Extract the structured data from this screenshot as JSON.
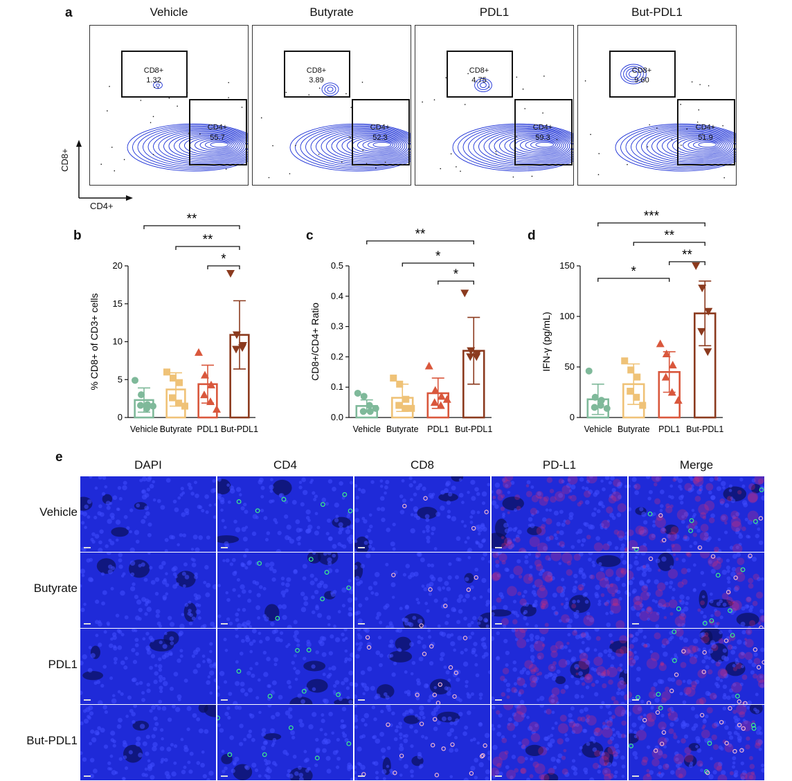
{
  "panel_labels": {
    "a": "a",
    "b": "b",
    "c": "c",
    "d": "d",
    "e": "e"
  },
  "flow": {
    "groups": [
      "Vehicle",
      "Butyrate",
      "PDL1",
      "But-PDL1"
    ],
    "cd8_gate_label": "CD8+",
    "cd4_gate_label": "CD4+",
    "cd8_values": [
      "1.32",
      "3.89",
      "4.75",
      "9.60"
    ],
    "cd4_values": [
      "55.7",
      "52.3",
      "59.3",
      "51.9"
    ],
    "x_axis_label": "CD4+",
    "y_axis_label": "CD8+",
    "contour_color": "#1a2fd6"
  },
  "chart_data": [
    {
      "type": "bar",
      "panel": "b",
      "categories": [
        "Vehicle",
        "Butyrate",
        "PDL1",
        "But-PDL1"
      ],
      "values": [
        2.3,
        3.7,
        4.4,
        10.9
      ],
      "errors": [
        1.6,
        2.2,
        2.5,
        4.5
      ],
      "points": [
        [
          4.9,
          3.0,
          1.7,
          1.6,
          1.2,
          1.5
        ],
        [
          6.0,
          5.2,
          4.6,
          2.6,
          1.9,
          1.5
        ],
        [
          8.6,
          5.6,
          4.3,
          3.0,
          2.1,
          1.1
        ],
        [
          19.0,
          10.9,
          9.5,
          9.0,
          9.2
        ]
      ],
      "colors": [
        "#7fb99a",
        "#efc277",
        "#d9573c",
        "#8b3a1e"
      ],
      "ylabel": "% CD8+ of CD3+ cells",
      "ylim": [
        0,
        20
      ],
      "yticks": [
        "0",
        "5",
        "10",
        "15",
        "20"
      ],
      "significance": [
        {
          "from": 0,
          "to": 3,
          "label": "**"
        },
        {
          "from": 1,
          "to": 3,
          "label": "**"
        },
        {
          "from": 2,
          "to": 3,
          "label": "*"
        }
      ]
    },
    {
      "type": "bar",
      "panel": "c",
      "categories": [
        "Vehicle",
        "Butyrate",
        "PDL1",
        "But-PDL1"
      ],
      "values": [
        0.038,
        0.065,
        0.08,
        0.22
      ],
      "errors": [
        0.02,
        0.045,
        0.05,
        0.11
      ],
      "points": [
        [
          0.08,
          0.07,
          0.02,
          0.02,
          0.04,
          0.03
        ],
        [
          0.13,
          0.11,
          0.06,
          0.04,
          0.03,
          0.03
        ],
        [
          0.17,
          0.09,
          0.07,
          0.05,
          0.04,
          0.06
        ],
        [
          0.41,
          0.22,
          0.21,
          0.2,
          0.2
        ]
      ],
      "colors": [
        "#7fb99a",
        "#efc277",
        "#d9573c",
        "#8b3a1e"
      ],
      "ylabel": "CD8+/CD4+ Ratio",
      "ylim": [
        0,
        0.5
      ],
      "yticks": [
        "0.0",
        "0.1",
        "0.2",
        "0.3",
        "0.4",
        "0.5"
      ],
      "significance": [
        {
          "from": 0,
          "to": 3,
          "label": "**"
        },
        {
          "from": 1,
          "to": 3,
          "label": "*"
        },
        {
          "from": 2,
          "to": 3,
          "label": "*"
        }
      ]
    },
    {
      "type": "bar",
      "panel": "d",
      "categories": [
        "Vehicle",
        "Butyrate",
        "PDL1",
        "But-PDL1"
      ],
      "values": [
        18,
        33,
        45,
        103
      ],
      "errors": [
        15,
        20,
        20,
        32
      ],
      "points": [
        [
          46,
          20,
          17,
          10,
          12,
          9
        ],
        [
          56,
          47,
          40,
          26,
          20,
          12
        ],
        [
          73,
          63,
          52,
          40,
          25,
          17
        ],
        [
          150,
          128,
          105,
          85,
          65
        ]
      ],
      "colors": [
        "#7fb99a",
        "#efc277",
        "#d9573c",
        "#8b3a1e"
      ],
      "ylabel": "IFN-γ (pg/mL)",
      "ylim": [
        0,
        150
      ],
      "yticks": [
        "0",
        "50",
        "100",
        "150"
      ],
      "significance": [
        {
          "from": 0,
          "to": 3,
          "label": "***"
        },
        {
          "from": 1,
          "to": 3,
          "label": "**"
        },
        {
          "from": 2,
          "to": 3,
          "label": "**"
        },
        {
          "from": 0,
          "to": 2,
          "label": "*"
        }
      ]
    }
  ],
  "if_grid": {
    "columns": [
      "DAPI",
      "CD4",
      "CD8",
      "PD-L1",
      "Merge"
    ],
    "rows": [
      "Vehicle",
      "Butyrate",
      "PDL1",
      "But-PDL1"
    ],
    "base_color": "#1f2ad8"
  }
}
